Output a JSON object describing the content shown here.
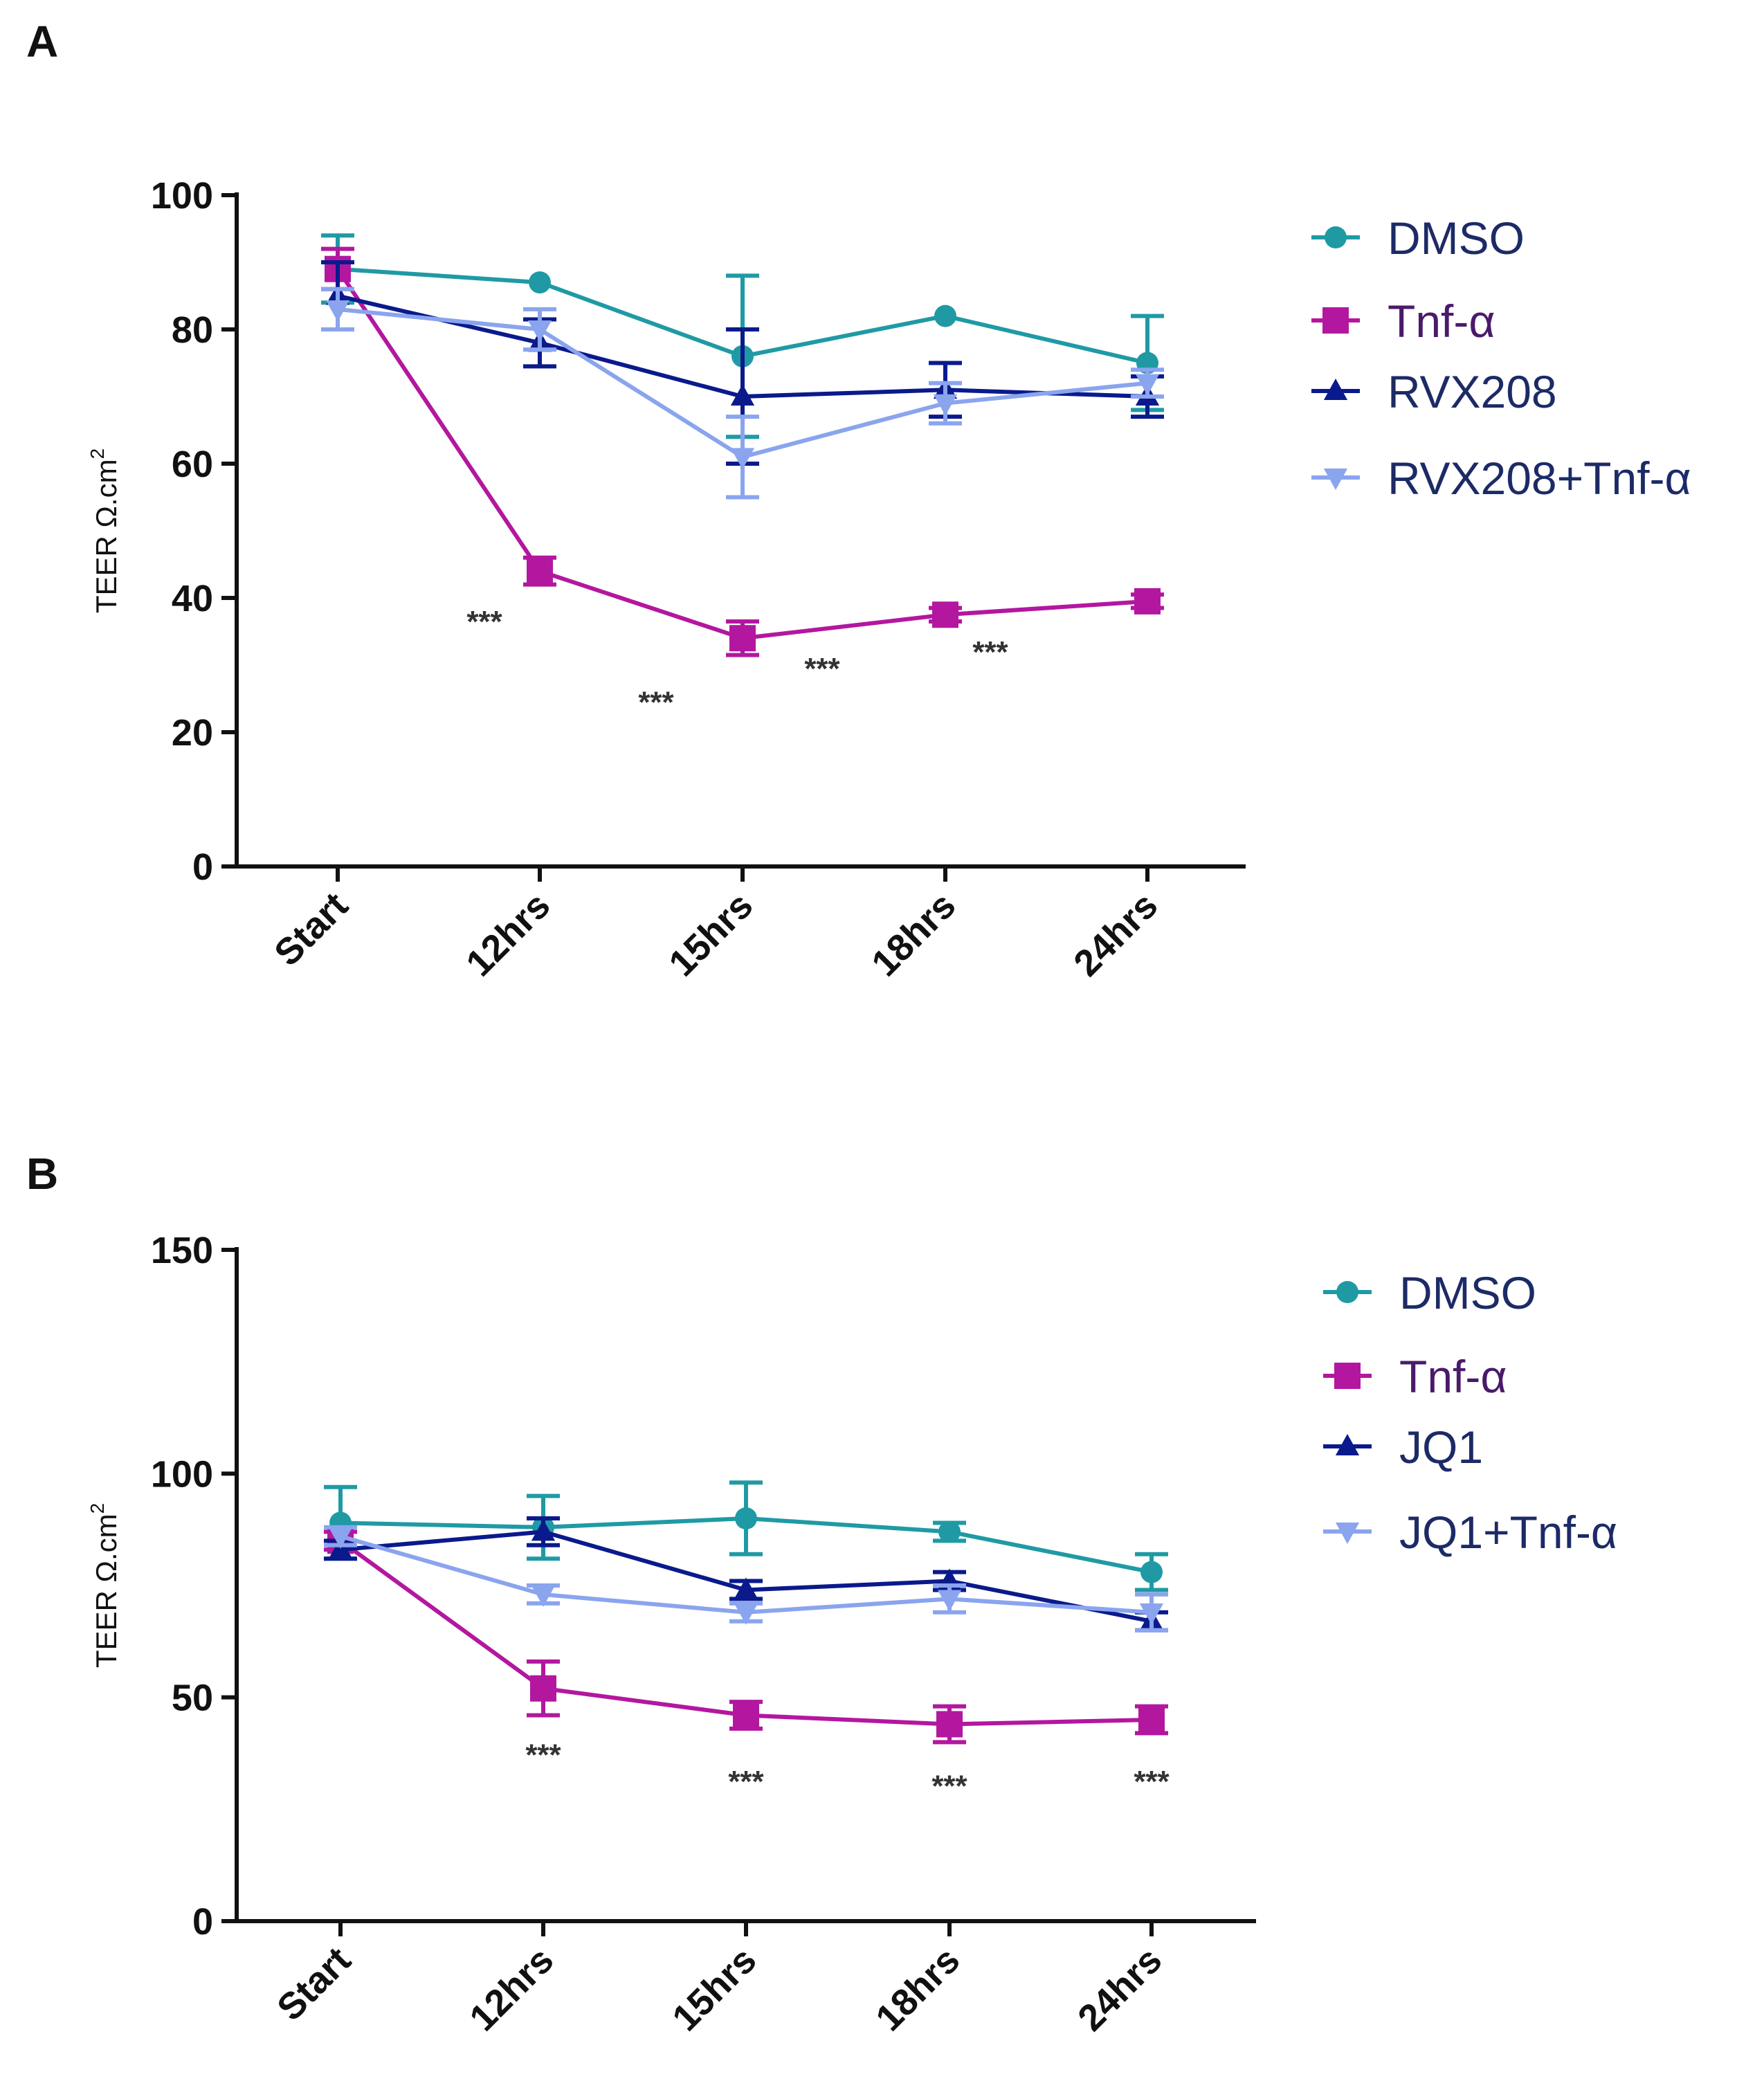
{
  "chart_data": [
    {
      "panel": "A",
      "type": "line",
      "categories": [
        "Start",
        "12hrs",
        "15hrs",
        "18hrs",
        "24hrs"
      ],
      "ylabel": "TEER Ω.cm",
      "ylabel_sup": "2",
      "ylim": [
        0,
        100
      ],
      "yticks": [
        "0",
        "20",
        "40",
        "60",
        "80",
        "100"
      ],
      "series": [
        {
          "name": "DMSO",
          "color": "#1f9aa5",
          "marker": "circle",
          "values": [
            89,
            87,
            76,
            82,
            75
          ],
          "errors": [
            5,
            0,
            12,
            0,
            7
          ]
        },
        {
          "name": "Tnf-α",
          "color": "#b3179f",
          "marker": "square",
          "values": [
            89,
            44,
            34,
            37.5,
            39.5
          ],
          "errors": [
            3,
            2,
            2.5,
            1,
            1
          ]
        },
        {
          "name": "RVX208",
          "color": "#0a1a8c",
          "marker": "triangle-up",
          "values": [
            85,
            78,
            70,
            71,
            70
          ],
          "errors": [
            5,
            3.5,
            10,
            4,
            3
          ]
        },
        {
          "name": "RVX208+Tnf-α",
          "color": "#8aa4ee",
          "marker": "triangle-down",
          "values": [
            83,
            80,
            61,
            69,
            72
          ],
          "errors": [
            3,
            3,
            6,
            3,
            2
          ]
        }
      ],
      "annotations": [
        {
          "text": "***",
          "x": "12hrs",
          "y": 37
        },
        {
          "text": "***",
          "x": "15hrs",
          "y": 25
        },
        {
          "text": "***",
          "x": "15hrs",
          "y": 30
        },
        {
          "text": "***",
          "x": "18hrs",
          "y": 32.5
        }
      ]
    },
    {
      "panel": "B",
      "type": "line",
      "categories": [
        "Start",
        "12hrs",
        "15hrs",
        "18hrs",
        "24hrs"
      ],
      "ylabel": "TEER Ω.cm",
      "ylabel_sup": "2",
      "ylim": [
        0,
        150
      ],
      "yticks": [
        "0",
        "50",
        "100",
        "150"
      ],
      "series": [
        {
          "name": "DMSO",
          "color": "#1f9aa5",
          "marker": "circle",
          "values": [
            89,
            88,
            90,
            87,
            78
          ],
          "errors": [
            8,
            7,
            8,
            2,
            4
          ]
        },
        {
          "name": "Tnf-α",
          "color": "#b3179f",
          "marker": "square",
          "values": [
            85,
            52,
            46,
            44,
            45
          ],
          "errors": [
            2,
            6,
            3,
            4,
            3
          ]
        },
        {
          "name": "JQ1",
          "color": "#0a1a8c",
          "marker": "triangle-up",
          "values": [
            83,
            87,
            74,
            76,
            67
          ],
          "errors": [
            2,
            3,
            2,
            2,
            2
          ]
        },
        {
          "name": "JQ1+Tnf-α",
          "color": "#8aa4ee",
          "marker": "triangle-down",
          "values": [
            86,
            73,
            69,
            72,
            69
          ],
          "errors": [
            2,
            2,
            2,
            3,
            4
          ]
        }
      ],
      "annotations": [
        {
          "text": "***",
          "x": "12hrs",
          "y": 38
        },
        {
          "text": "***",
          "x": "15hrs",
          "y": 32
        },
        {
          "text": "***",
          "x": "18hrs",
          "y": 31
        },
        {
          "text": "***",
          "x": "24hrs",
          "y": 32
        }
      ]
    }
  ]
}
